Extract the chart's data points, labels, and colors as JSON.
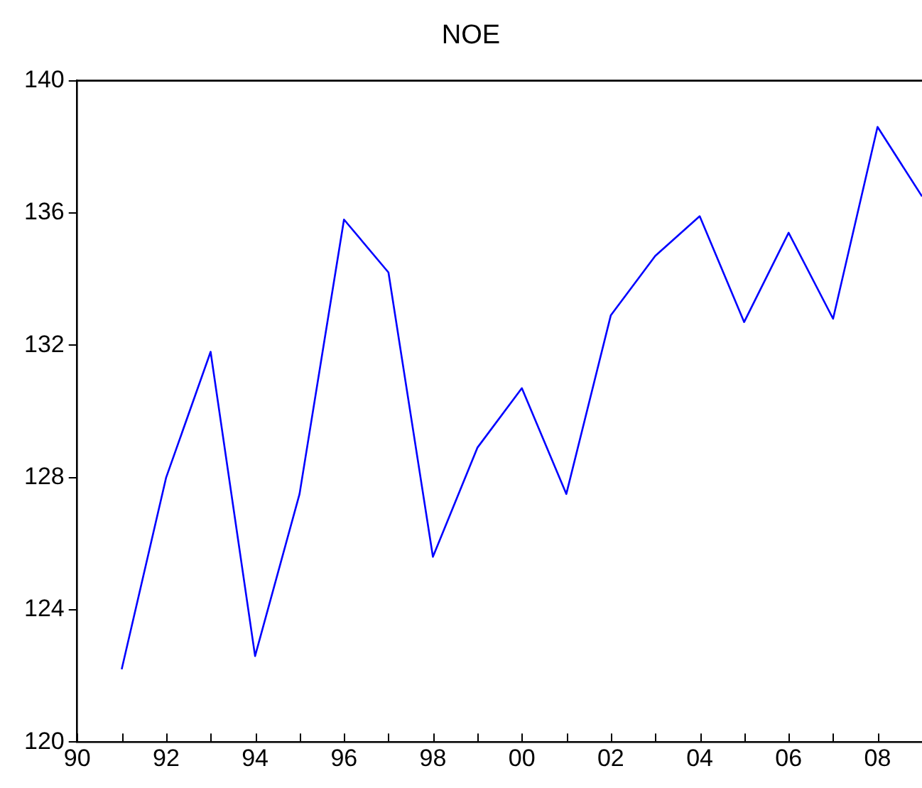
{
  "chart_data": {
    "type": "line",
    "title": "NOE",
    "x": [
      1991,
      1992,
      1993,
      1994,
      1995,
      1996,
      1997,
      1998,
      1999,
      2000,
      2001,
      2002,
      2003,
      2004,
      2005,
      2006,
      2007,
      2008,
      2009
    ],
    "series": [
      {
        "color": "#0000ff",
        "values": [
          122.2,
          128.0,
          131.8,
          122.6,
          127.5,
          135.8,
          134.2,
          125.6,
          128.9,
          130.7,
          127.5,
          132.9,
          134.7,
          135.9,
          132.7,
          135.4,
          132.8,
          138.6,
          136.5
        ]
      }
    ],
    "xlim": [
      1990,
      2009
    ],
    "xticks": [
      {
        "value": 1990,
        "label": "90"
      },
      {
        "value": 1991,
        "label": null
      },
      {
        "value": 1992,
        "label": "92"
      },
      {
        "value": 1993,
        "label": null
      },
      {
        "value": 1994,
        "label": "94"
      },
      {
        "value": 1995,
        "label": null
      },
      {
        "value": 1996,
        "label": "96"
      },
      {
        "value": 1997,
        "label": null
      },
      {
        "value": 1998,
        "label": "98"
      },
      {
        "value": 1999,
        "label": null
      },
      {
        "value": 2000,
        "label": "00"
      },
      {
        "value": 2001,
        "label": null
      },
      {
        "value": 2002,
        "label": "02"
      },
      {
        "value": 2003,
        "label": null
      },
      {
        "value": 2004,
        "label": "04"
      },
      {
        "value": 2005,
        "label": null
      },
      {
        "value": 2006,
        "label": "06"
      },
      {
        "value": 2007,
        "label": null
      },
      {
        "value": 2008,
        "label": "08"
      }
    ],
    "ylim": [
      120,
      140
    ],
    "yticks": [
      120,
      124,
      128,
      132,
      136,
      140
    ],
    "grid": false,
    "legend": false,
    "marker": "none",
    "line_style": "solid"
  }
}
